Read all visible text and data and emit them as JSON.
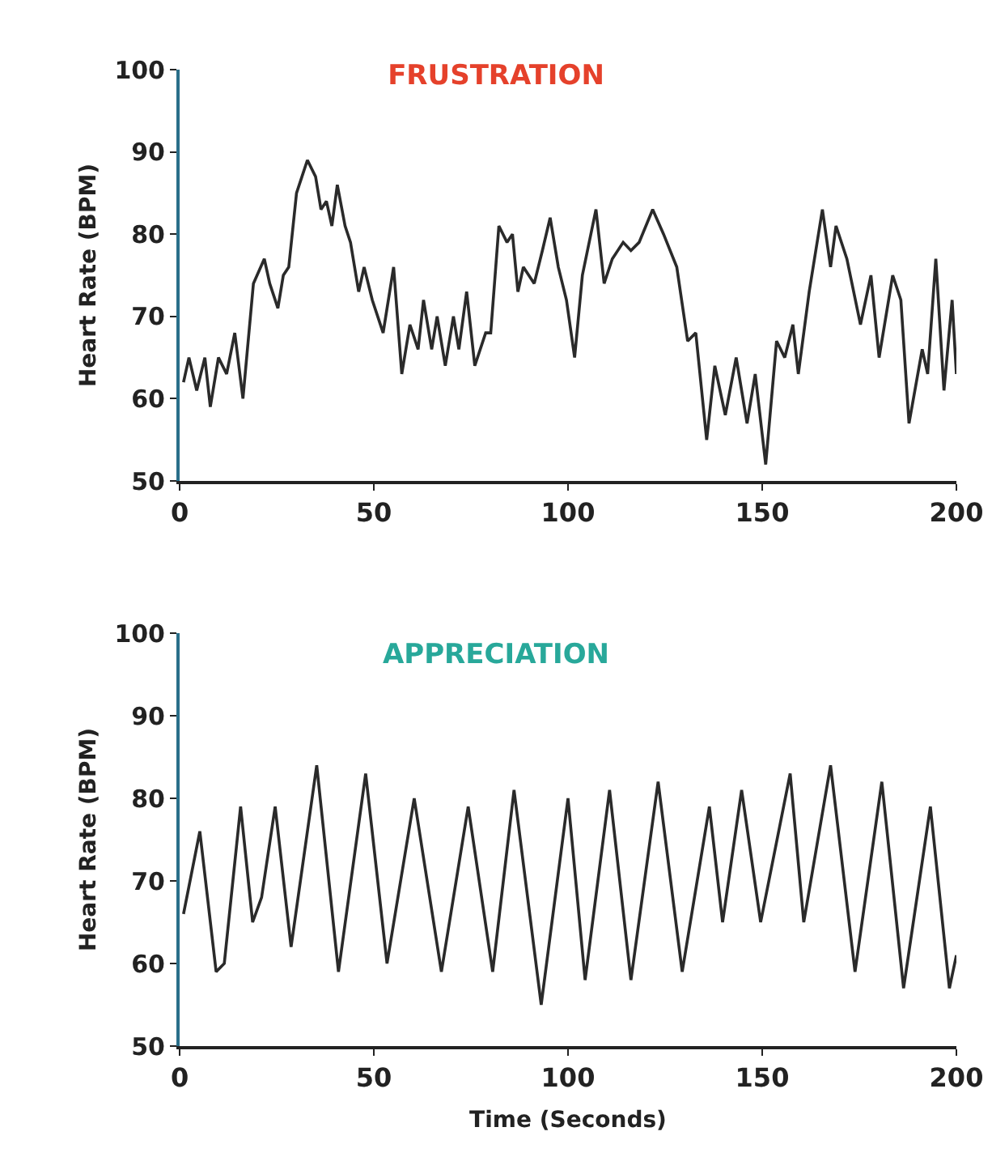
{
  "chart_data": [
    {
      "type": "line",
      "title": "FRUSTRATION",
      "ylabel": "Heart Rate (BPM)",
      "x": [
        1,
        2.4,
        4.4,
        6.5,
        7.9,
        10,
        12.1,
        14.2,
        16.3,
        19,
        21.8,
        23.2,
        25.3,
        26.7,
        28.1,
        30.1,
        31.5,
        32.9,
        35,
        36.4,
        37.8,
        39.2,
        40.6,
        42.6,
        44,
        46.1,
        47.5,
        49.6,
        52.4,
        55.1,
        57.2,
        59.3,
        61.4,
        62.8,
        64.9,
        66.3,
        68.4,
        70.5,
        71.9,
        73.9,
        76,
        78.8,
        80.1,
        82.2,
        84.3,
        85.7,
        87.1,
        88.5,
        91.3,
        93.4,
        95.4,
        97.5,
        99.6,
        101.7,
        103.7,
        107.2,
        109.3,
        111.4,
        114.2,
        116.2,
        118.3,
        121.8,
        124.6,
        128,
        130.8,
        132.9,
        135.7,
        137.8,
        140.5,
        143.3,
        146.1,
        148.2,
        150.9,
        153.7,
        155.8,
        157.9,
        159.3,
        162.1,
        165.5,
        167.6,
        169,
        171.8,
        175.3,
        178,
        180.1,
        183.6,
        185.7,
        187.8,
        191.2,
        192.6,
        194.7,
        196.8,
        198.9,
        200
      ],
      "series": [
        {
          "color": "#2a2a2a",
          "values": [
            62,
            65,
            61,
            65,
            59,
            65,
            63,
            68,
            60,
            74,
            77,
            74,
            71,
            75,
            76,
            85,
            87,
            89,
            87,
            83,
            84,
            81,
            86,
            81,
            79,
            73,
            76,
            72,
            68,
            76,
            63,
            69,
            66,
            72,
            66,
            70,
            64,
            70,
            66,
            73,
            64,
            68,
            68,
            81,
            79,
            80,
            73,
            76,
            74,
            78,
            82,
            76,
            72,
            65,
            75,
            83,
            74,
            77,
            79,
            78,
            79,
            83,
            80,
            76,
            67,
            68,
            55,
            64,
            58,
            65,
            57,
            63,
            52,
            67,
            65,
            69,
            63,
            73,
            83,
            76,
            81,
            77,
            69,
            75,
            65,
            75,
            72,
            57,
            66,
            63,
            77,
            61,
            72,
            63
          ]
        }
      ],
      "xlim": [
        0,
        200
      ],
      "xticks": [
        0,
        50,
        100,
        150,
        200
      ],
      "ylim": [
        50,
        100
      ],
      "yticks": [
        50,
        60,
        70,
        80,
        90,
        100
      ],
      "grid": false
    },
    {
      "type": "line",
      "title": "APPRECIATION",
      "ylabel": "Heart Rate (BPM)",
      "xlabel": "Time (Seconds)",
      "x": [
        1,
        5.2,
        9.4,
        11.5,
        15.7,
        18.8,
        21.1,
        24.6,
        28.7,
        35.3,
        40.9,
        47.9,
        53.4,
        60.4,
        67.4,
        74.3,
        80.6,
        86.1,
        93.1,
        100,
        104.4,
        110.7,
        116.2,
        123.2,
        129.4,
        136.4,
        139.8,
        144.7,
        149.6,
        157.2,
        160.7,
        167.6,
        173.9,
        180.8,
        186.4,
        193.3,
        198.2,
        200
      ],
      "series": [
        {
          "color": "#2a2a2a",
          "values": [
            66,
            76,
            59,
            60,
            79,
            65,
            68,
            79,
            62,
            84,
            59,
            83,
            60,
            80,
            59,
            79,
            59,
            81,
            55,
            80,
            58,
            81,
            58,
            82,
            59,
            79,
            65,
            81,
            65,
            83,
            65,
            84,
            59,
            82,
            57,
            79,
            57,
            61
          ]
        }
      ],
      "xlim": [
        0,
        200
      ],
      "xticks": [
        0,
        50,
        100,
        150,
        200
      ],
      "ylim": [
        50,
        100
      ],
      "yticks": [
        50,
        60,
        70,
        80,
        90,
        100
      ],
      "grid": false
    }
  ]
}
